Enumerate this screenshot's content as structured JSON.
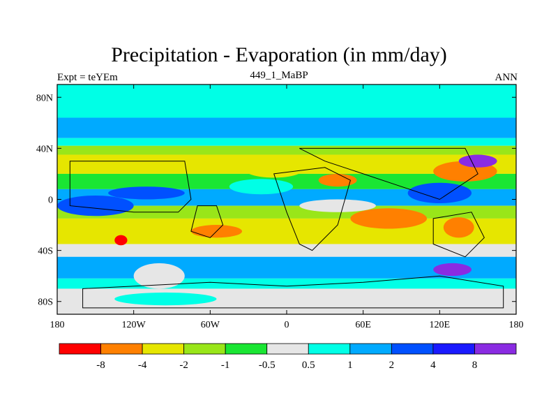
{
  "title": "Precipitation - Evaporation (in mm/day)",
  "subtitle_left": "Expt = teYEm",
  "subtitle_center": "449_1_MaBP",
  "subtitle_right": "ANN",
  "chart_data": {
    "type": "heatmap",
    "title": "Precipitation - Evaporation (in mm/day)",
    "map_projection": "cylindrical-equidistant",
    "xlim": [
      -180,
      180
    ],
    "ylim": [
      -90,
      90
    ],
    "x_ticks": [
      {
        "value": -180,
        "label": "180"
      },
      {
        "value": -120,
        "label": "120W"
      },
      {
        "value": -60,
        "label": "60W"
      },
      {
        "value": 0,
        "label": "0"
      },
      {
        "value": 60,
        "label": "60E"
      },
      {
        "value": 120,
        "label": "120E"
      },
      {
        "value": 180,
        "label": "180"
      }
    ],
    "y_ticks": [
      {
        "value": 80,
        "label": "80N"
      },
      {
        "value": 40,
        "label": "40N"
      },
      {
        "value": 0,
        "label": "0"
      },
      {
        "value": -40,
        "label": "40S"
      },
      {
        "value": -80,
        "label": "80S"
      }
    ],
    "colorbar": {
      "orientation": "horizontal",
      "levels": [
        "-8",
        "-4",
        "-2",
        "-1",
        "-0.5",
        "0.5",
        "1",
        "2",
        "4",
        "8"
      ],
      "colors": [
        "#ff0000",
        "#ff8000",
        "#e6e600",
        "#99e619",
        "#1ae633",
        "#e6e6e6",
        "#00ffe6",
        "#00aaff",
        "#0050ff",
        "#1a1aff",
        "#8a2be2"
      ]
    },
    "zonal_bands": [
      {
        "lat_from": 90,
        "lat_to": 64,
        "class": 6
      },
      {
        "lat_from": 64,
        "lat_to": 48,
        "class": 7
      },
      {
        "lat_from": 48,
        "lat_to": 42,
        "class": 6
      },
      {
        "lat_from": 42,
        "lat_to": 35,
        "class": 3
      },
      {
        "lat_from": 35,
        "lat_to": 20,
        "class": 2
      },
      {
        "lat_from": 20,
        "lat_to": 8,
        "class": 4
      },
      {
        "lat_from": 8,
        "lat_to": -5,
        "class": 7
      },
      {
        "lat_from": -5,
        "lat_to": -15,
        "class": 3
      },
      {
        "lat_from": -15,
        "lat_to": -35,
        "class": 2
      },
      {
        "lat_from": -35,
        "lat_to": -45,
        "class": 5
      },
      {
        "lat_from": -45,
        "lat_to": -62,
        "class": 7
      },
      {
        "lat_from": -62,
        "lat_to": -70,
        "class": 6
      },
      {
        "lat_from": -70,
        "lat_to": -90,
        "class": 5
      }
    ],
    "anomalies": [
      {
        "lon": -10,
        "lat": 25,
        "rlon": 25,
        "rlat": 8,
        "class": 2
      },
      {
        "lon": 140,
        "lat": 22,
        "rlon": 25,
        "rlat": 8,
        "class": 1
      },
      {
        "lon": 135,
        "lat": -22,
        "rlon": 12,
        "rlat": 8,
        "class": 1
      },
      {
        "lon": 150,
        "lat": 30,
        "rlon": 15,
        "rlat": 5,
        "class": 10
      },
      {
        "lon": 120,
        "lat": 5,
        "rlon": 25,
        "rlat": 8,
        "class": 8
      },
      {
        "lon": -150,
        "lat": -5,
        "rlon": 30,
        "rlat": 8,
        "class": 8
      },
      {
        "lon": -110,
        "lat": 5,
        "rlon": 30,
        "rlat": 5,
        "class": 8
      },
      {
        "lon": 40,
        "lat": -5,
        "rlon": 30,
        "rlat": 5,
        "class": 5
      },
      {
        "lon": -100,
        "lat": -60,
        "rlon": 20,
        "rlat": 10,
        "class": 5
      },
      {
        "lon": -95,
        "lat": -78,
        "rlon": 40,
        "rlat": 5,
        "class": 6
      },
      {
        "lon": 130,
        "lat": -55,
        "rlon": 15,
        "rlat": 5,
        "class": 10
      },
      {
        "lon": -130,
        "lat": -32,
        "rlon": 5,
        "rlat": 4,
        "class": 0
      },
      {
        "lon": -55,
        "lat": -25,
        "rlon": 20,
        "rlat": 5,
        "class": 1
      },
      {
        "lon": 40,
        "lat": 15,
        "rlon": 15,
        "rlat": 5,
        "class": 1
      },
      {
        "lon": -20,
        "lat": 10,
        "rlon": 25,
        "rlat": 6,
        "class": 6
      },
      {
        "lon": 80,
        "lat": -15,
        "rlon": 30,
        "rlat": 8,
        "class": 1
      }
    ],
    "land_outlines": [
      {
        "name": "north-america",
        "points": [
          [
            -170,
            30
          ],
          [
            -80,
            30
          ],
          [
            -75,
            0
          ],
          [
            -85,
            -10
          ],
          [
            -120,
            -10
          ],
          [
            -170,
            -5
          ]
        ]
      },
      {
        "name": "south-america",
        "points": [
          [
            -70,
            -5
          ],
          [
            -55,
            -5
          ],
          [
            -50,
            -20
          ],
          [
            -60,
            -30
          ],
          [
            -75,
            -25
          ]
        ]
      },
      {
        "name": "africa",
        "points": [
          [
            -10,
            20
          ],
          [
            30,
            25
          ],
          [
            50,
            15
          ],
          [
            40,
            -20
          ],
          [
            20,
            -40
          ],
          [
            10,
            -35
          ],
          [
            0,
            -10
          ]
        ]
      },
      {
        "name": "eurasia",
        "points": [
          [
            10,
            40
          ],
          [
            140,
            40
          ],
          [
            150,
            20
          ],
          [
            120,
            0
          ],
          [
            90,
            10
          ],
          [
            60,
            20
          ],
          [
            30,
            30
          ]
        ]
      },
      {
        "name": "australia",
        "points": [
          [
            115,
            -15
          ],
          [
            145,
            -10
          ],
          [
            155,
            -30
          ],
          [
            140,
            -45
          ],
          [
            115,
            -35
          ]
        ]
      },
      {
        "name": "antarctica",
        "points": [
          [
            -160,
            -70
          ],
          [
            -60,
            -65
          ],
          [
            0,
            -68
          ],
          [
            60,
            -65
          ],
          [
            120,
            -60
          ],
          [
            170,
            -68
          ],
          [
            170,
            -85
          ],
          [
            -160,
            -85
          ]
        ]
      }
    ]
  }
}
